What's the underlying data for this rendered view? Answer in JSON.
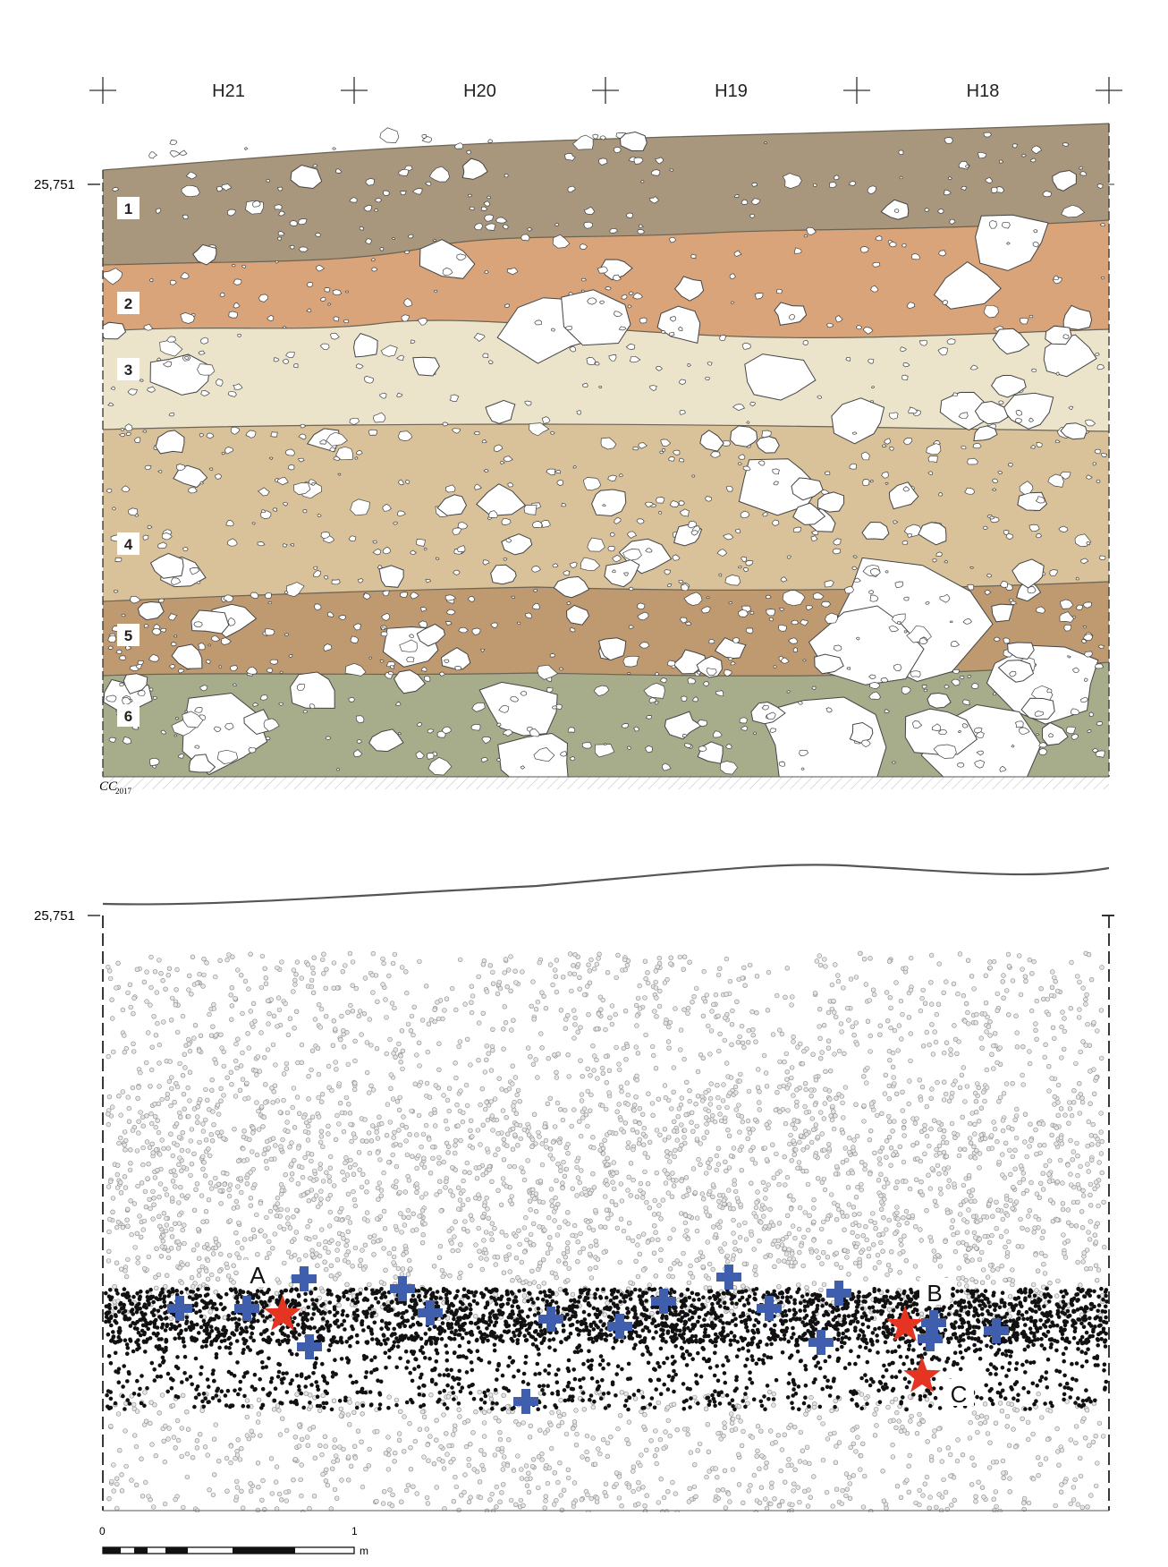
{
  "grid_squares": [
    "H21",
    "H20",
    "H19",
    "H18"
  ],
  "elevation_label": "25,751",
  "layers": [
    {
      "number": "1",
      "color": "#a8977c"
    },
    {
      "number": "2",
      "color": "#d9a47a"
    },
    {
      "number": "3",
      "color": "#ebe4cb"
    },
    {
      "number": "4",
      "color": "#d9c199"
    },
    {
      "number": "5",
      "color": "#bf9a70"
    },
    {
      "number": "6",
      "color": "#a7ad8b"
    }
  ],
  "credit": {
    "initials": "CC",
    "year": "2017"
  },
  "markers": {
    "star_color": "#e53422",
    "cross_color": "#3f5fae",
    "stars": [
      "A",
      "B",
      "C"
    ]
  },
  "scale_bar": {
    "start": "0",
    "end": "1",
    "unit": "m"
  }
}
